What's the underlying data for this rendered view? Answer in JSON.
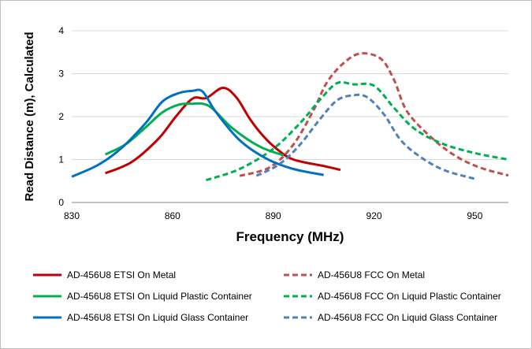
{
  "chart_data": {
    "type": "line",
    "title": "",
    "xlabel": "Frequency (MHz)",
    "ylabel": "Read Distance (m), Calculated",
    "xlim": [
      830,
      960
    ],
    "ylim": [
      0,
      4
    ],
    "x_ticks": [
      830,
      860,
      890,
      920,
      950
    ],
    "y_ticks": [
      0,
      1,
      2,
      3,
      4
    ],
    "grid": "horizontal",
    "legend_position": "bottom",
    "series": [
      {
        "name": "AD-456U8 ETSI On Metal",
        "color": "#c00000",
        "dash": "solid",
        "x": [
          840,
          848,
          856,
          861,
          866,
          870,
          875,
          879,
          883,
          887,
          891,
          896,
          905,
          910
        ],
        "y": [
          0.68,
          0.95,
          1.5,
          2.0,
          2.42,
          2.43,
          2.67,
          2.45,
          1.95,
          1.55,
          1.25,
          1.0,
          0.85,
          0.76
        ]
      },
      {
        "name": "AD-456U8 FCC On Metal",
        "color": "#c0504d",
        "dash": "dashed",
        "x": [
          880,
          889,
          896,
          902,
          906,
          911,
          916,
          922,
          926,
          930,
          938,
          945,
          952,
          960
        ],
        "y": [
          0.62,
          0.82,
          1.35,
          2.15,
          2.8,
          3.25,
          3.47,
          3.35,
          2.85,
          2.1,
          1.45,
          1.05,
          0.8,
          0.63
        ]
      },
      {
        "name": "AD-456U8 ETSI On Liquid Plastic Container",
        "color": "#00b050",
        "dash": "solid",
        "x": [
          840,
          846,
          852,
          857,
          862,
          866,
          869,
          872,
          878,
          886,
          893
        ],
        "y": [
          1.12,
          1.35,
          1.75,
          2.1,
          2.28,
          2.3,
          2.3,
          2.18,
          1.72,
          1.3,
          1.1
        ]
      },
      {
        "name": "AD-456U8 FCC On Liquid Plastic Container",
        "color": "#00b050",
        "dash": "dashed",
        "x": [
          870,
          880,
          890,
          898,
          904,
          909,
          914,
          920,
          926,
          932,
          940,
          950,
          960
        ],
        "y": [
          0.52,
          0.78,
          1.25,
          1.85,
          2.4,
          2.78,
          2.75,
          2.72,
          2.2,
          1.72,
          1.38,
          1.15,
          1.0
        ]
      },
      {
        "name": "AD-456U8 ETSI On Liquid Glass Container",
        "color": "#0070c0",
        "dash": "solid",
        "x": [
          830,
          838,
          845,
          852,
          857,
          862,
          866,
          869,
          873,
          880,
          888,
          896,
          905
        ],
        "y": [
          0.6,
          0.88,
          1.28,
          1.85,
          2.35,
          2.55,
          2.6,
          2.58,
          2.1,
          1.45,
          1.02,
          0.78,
          0.64
        ]
      },
      {
        "name": "AD-456U8 FCC On Liquid Glass Container",
        "color": "#4f81bd",
        "dash": "dashed",
        "x": [
          885,
          892,
          898,
          904,
          909,
          914,
          918,
          923,
          928,
          934,
          941,
          950
        ],
        "y": [
          0.62,
          0.9,
          1.35,
          1.95,
          2.38,
          2.5,
          2.45,
          2.05,
          1.45,
          1.05,
          0.75,
          0.55
        ]
      }
    ]
  }
}
